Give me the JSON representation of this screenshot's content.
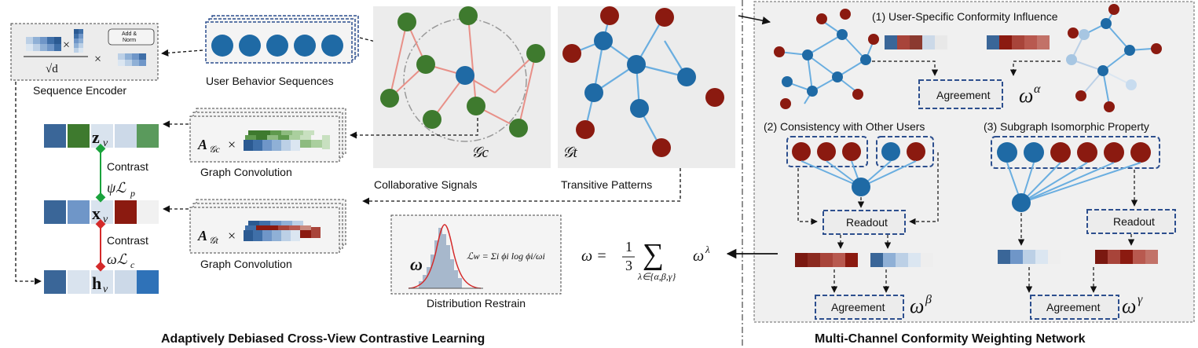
{
  "colors": {
    "blue_node": "#1f6aa5",
    "red_node": "#8b1a10",
    "green_node": "#3e7a2e",
    "green_edge": "#e89088",
    "blue_edge": "#6aaee0",
    "panel_fill": "#f0f0f0",
    "dashed_border": "#2d4f8e",
    "contrast_green": "#1aa33c",
    "contrast_red": "#d42a2a"
  },
  "encoder": {
    "title": "Sequence Encoder",
    "add_norm": "Add & Norm",
    "times": "×",
    "sqrt_d": "√d"
  },
  "behavior": {
    "label": "User Behavior Sequences"
  },
  "embeddings": {
    "z": "z",
    "x": "x",
    "h": "h",
    "sub": "v"
  },
  "contrast": {
    "label_top": "Contrast",
    "loss_top": "ψℒ",
    "loss_top_sub": "p",
    "label_bottom": "Contrast",
    "loss_bottom": "ωℒ",
    "loss_bottom_sub": "c"
  },
  "graph_conv": {
    "label": "Graph Convolution",
    "a_symbol": "A",
    "sub_c": "𝒢c",
    "sub_t": "𝒢t",
    "times": "×"
  },
  "graphs": {
    "collab_label": "Collaborative Signals",
    "transitive_label": "Transitive Patterns",
    "gc_symbol": "𝒢c",
    "gt_symbol": "𝒢t"
  },
  "distribution": {
    "label": "Distribution Restrain",
    "omega": "ω",
    "formula": "ℒw = Σi ϕi log ϕi/ωi"
  },
  "weight_formula": {
    "lhs": "ω = ",
    "frac_num": "1",
    "frac_den": "3",
    "sum": "∑",
    "sum_sub": "λ∈{α,β,γ}",
    "rhs": "ω",
    "rhs_sup": "λ"
  },
  "right_panel": {
    "section1": "(1) User-Specific Conformity Influence",
    "section2": "(2) Consistency with Other Users",
    "section3": "(3) Subgraph Isomorphic Property",
    "agreement": "Agreement",
    "readout": "Readout",
    "omega": "ω",
    "alpha": "α",
    "beta": "β",
    "gamma": "γ"
  },
  "titles": {
    "left": "Adaptively Debiased Cross-View Contrastive Learning",
    "right": "Multi-Channel Conformity Weighting Network"
  }
}
